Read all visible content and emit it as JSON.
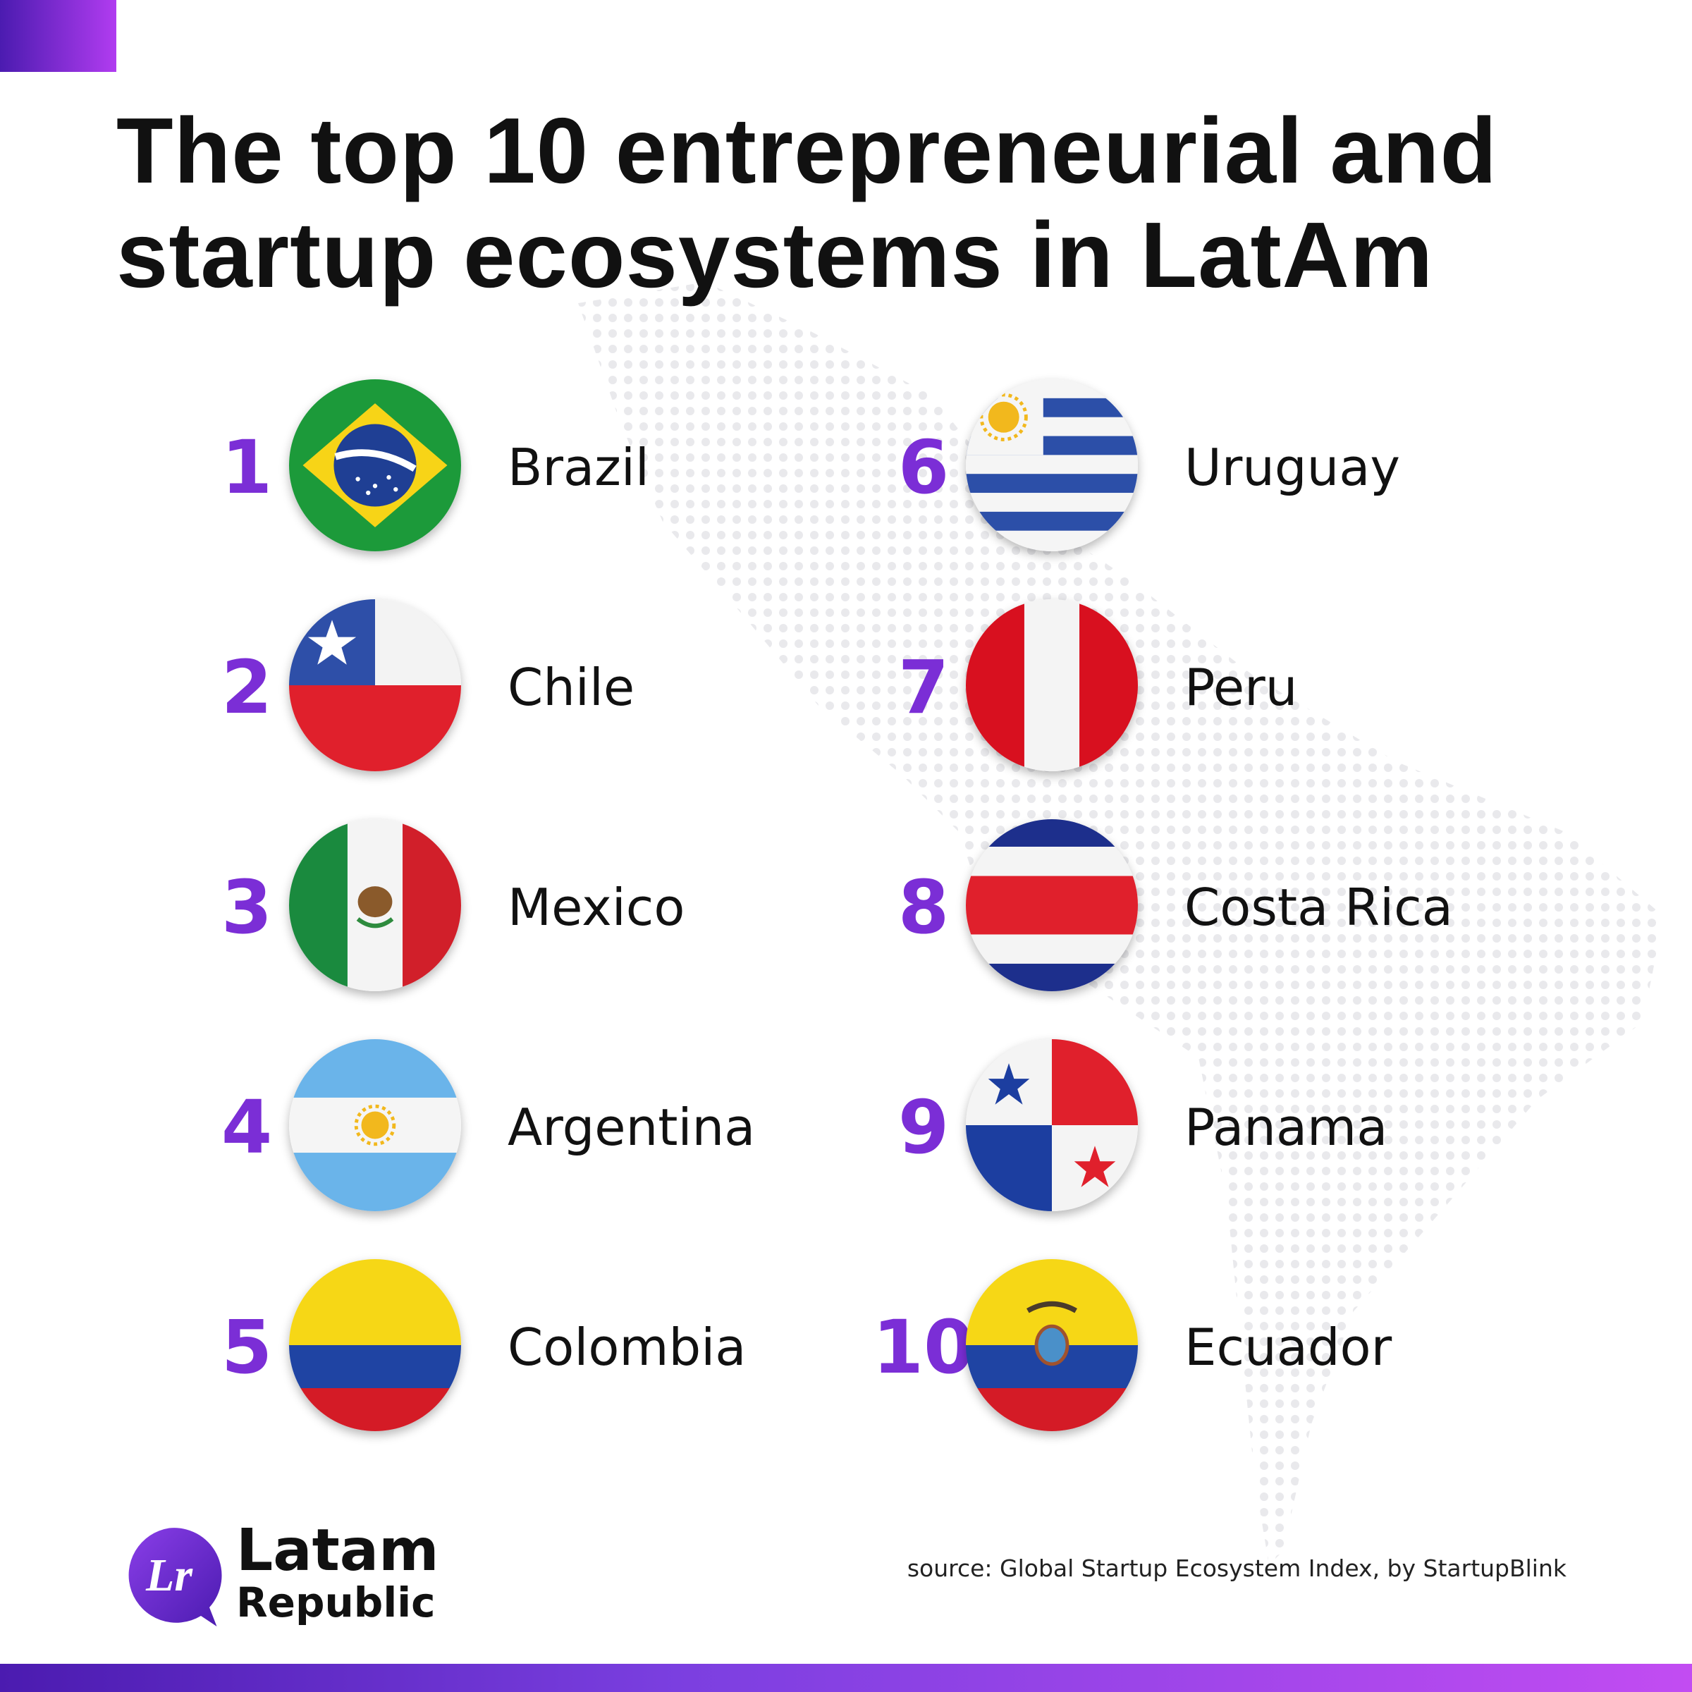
{
  "title": {
    "line1": "The top 10 entrepreneurial and",
    "line2": "startup ecosystems in LatAm"
  },
  "rankings": [
    {
      "rank": "1",
      "country": "Brazil",
      "flag_icon": "brazil-flag-icon"
    },
    {
      "rank": "2",
      "country": "Chile",
      "flag_icon": "chile-flag-icon"
    },
    {
      "rank": "3",
      "country": "Mexico",
      "flag_icon": "mexico-flag-icon"
    },
    {
      "rank": "4",
      "country": "Argentina",
      "flag_icon": "argentina-flag-icon"
    },
    {
      "rank": "5",
      "country": "Colombia",
      "flag_icon": "colombia-flag-icon"
    },
    {
      "rank": "6",
      "country": "Uruguay",
      "flag_icon": "uruguay-flag-icon"
    },
    {
      "rank": "7",
      "country": "Peru",
      "flag_icon": "peru-flag-icon"
    },
    {
      "rank": "8",
      "country": "Costa Rica",
      "flag_icon": "costa-rica-flag-icon"
    },
    {
      "rank": "9",
      "country": "Panama",
      "flag_icon": "panama-flag-icon"
    },
    {
      "rank": "10",
      "country": "Ecuador",
      "flag_icon": "ecuador-flag-icon"
    }
  ],
  "brand": {
    "name_line1": "Latam",
    "name_line2": "Republic",
    "mark": "Lr"
  },
  "source": "source:  Global Startup Ecosystem Index, by StartupBlink",
  "colors": {
    "accent_purple": "#7b2ed6",
    "gradient_start": "#4b1bb0",
    "gradient_end": "#c24cf2"
  }
}
